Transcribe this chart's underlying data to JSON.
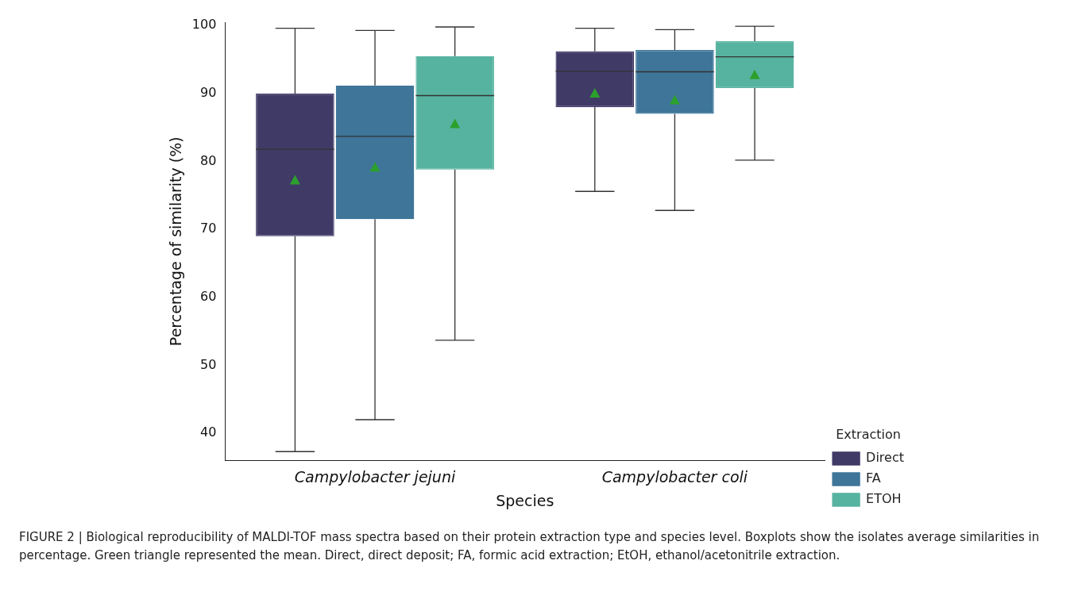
{
  "chart_data": {
    "type": "box",
    "xlabel": "Species",
    "ylabel": "Percentage of similarity (%)",
    "legend_title": "Extraction",
    "legend": "bottom right",
    "grid": false,
    "categories": [
      "Campylobacter jejuni",
      "Campylobacter coli"
    ],
    "ylim": [
      36,
      100.5
    ],
    "yticks": [
      40,
      50,
      60,
      70,
      80,
      90,
      100
    ],
    "series": [
      {
        "name": "Direct",
        "color": "#403a67",
        "boxes": [
          {
            "low": 37.3,
            "q1": 69,
            "median": 81.8,
            "q3": 90,
            "high": 99.6,
            "mean": 77.2
          },
          {
            "low": 75.6,
            "q1": 88,
            "median": 93.3,
            "q3": 96.2,
            "high": 99.6,
            "mean": 90
          }
        ]
      },
      {
        "name": "FA",
        "color": "#3e7599",
        "boxes": [
          {
            "low": 42,
            "q1": 71.5,
            "median": 83.7,
            "q3": 91.2,
            "high": 99.3,
            "mean": 79.1
          },
          {
            "low": 72.8,
            "q1": 87,
            "median": 93.2,
            "q3": 96.4,
            "high": 99.4,
            "mean": 89
          }
        ]
      },
      {
        "name": "ETOH",
        "color": "#56b3a0",
        "boxes": [
          {
            "low": 53.7,
            "q1": 78.8,
            "median": 89.7,
            "q3": 95.5,
            "high": 99.8,
            "mean": 85.5
          },
          {
            "low": 80.2,
            "q1": 90.8,
            "median": 95.4,
            "q3": 97.7,
            "high": 99.9,
            "mean": 92.7
          }
        ]
      }
    ],
    "annotations": [
      "FIGURE 2 | Biological reproducibility of MALDI-TOF mass spectra based on their protein extraction type and species level. Boxplots show the isolates average similarities in percentage. Green triangle represented the mean. Direct, direct deposit; FA, formic acid extraction; EtOH, ethanol/acetonitrile extraction."
    ]
  }
}
